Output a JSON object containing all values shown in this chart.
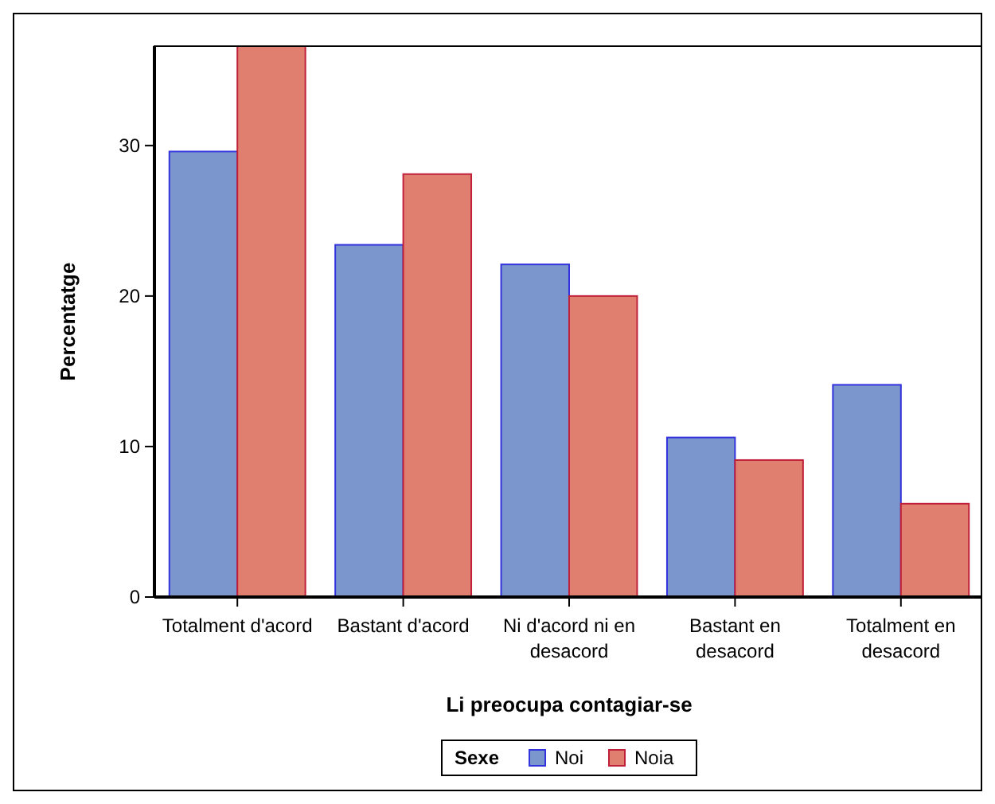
{
  "chart_data": {
    "type": "bar",
    "xlabel": "Li preocupa contagiar-se",
    "ylabel": "Percentatge",
    "legend_title": "Sexe",
    "legend": "bottom",
    "categories": [
      "Totalment d'acord",
      "Bastant d'acord",
      "Ni d'acord ni en desacord",
      "Bastant en desacord",
      "Totalment en desacord"
    ],
    "series": [
      {
        "name": "Noi",
        "color": "#7b96cc",
        "values": [
          29.6,
          23.4,
          22.1,
          10.6,
          14.1
        ]
      },
      {
        "name": "Noia",
        "color": "#e07f70",
        "values": [
          36.6,
          28.1,
          20.0,
          9.1,
          6.2
        ]
      }
    ],
    "ylim": [
      0,
      36.6
    ],
    "yticks": [
      0,
      10,
      20,
      30
    ]
  }
}
